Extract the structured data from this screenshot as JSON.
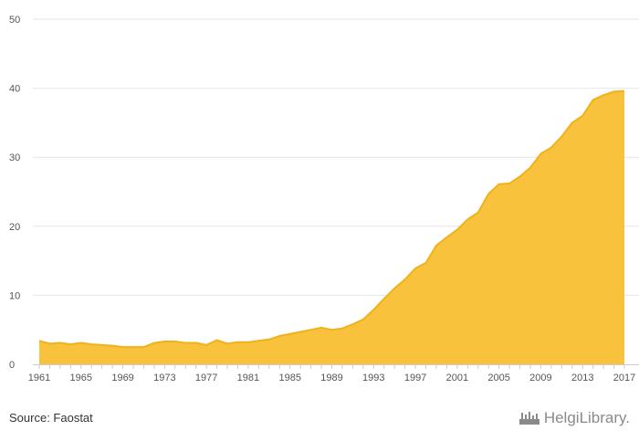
{
  "chart_data": {
    "type": "area",
    "x": [
      1961,
      1962,
      1963,
      1964,
      1965,
      1966,
      1967,
      1968,
      1969,
      1970,
      1971,
      1972,
      1973,
      1974,
      1975,
      1976,
      1977,
      1978,
      1979,
      1980,
      1981,
      1982,
      1983,
      1984,
      1985,
      1986,
      1987,
      1988,
      1989,
      1990,
      1991,
      1992,
      1993,
      1994,
      1995,
      1996,
      1997,
      1998,
      1999,
      2000,
      2001,
      2002,
      2003,
      2004,
      2005,
      2006,
      2007,
      2008,
      2009,
      2010,
      2011,
      2012,
      2013,
      2014,
      2015,
      2016,
      2017
    ],
    "series": [
      {
        "values": [
          3.4,
          3.0,
          3.1,
          2.9,
          3.1,
          2.9,
          2.8,
          2.7,
          2.5,
          2.5,
          2.5,
          3.1,
          3.3,
          3.3,
          3.1,
          3.1,
          2.8,
          3.5,
          3.0,
          3.2,
          3.2,
          3.4,
          3.6,
          4.1,
          4.4,
          4.7,
          5.0,
          5.3,
          5.0,
          5.2,
          5.8,
          6.5,
          7.9,
          9.5,
          11.0,
          12.3,
          13.9,
          14.7,
          17.2,
          18.4,
          19.5,
          21.0,
          22.0,
          24.7,
          26.1,
          26.2,
          27.2,
          28.5,
          30.5,
          31.4,
          33.0,
          35.0,
          36.0,
          38.3,
          39.0,
          39.5,
          39.6
        ]
      }
    ],
    "xticks": [
      1961,
      1965,
      1969,
      1973,
      1977,
      1981,
      1985,
      1989,
      1993,
      1997,
      2001,
      2005,
      2009,
      2013,
      2017
    ],
    "yticks": [
      0,
      10,
      20,
      30,
      40,
      50
    ],
    "xlim": [
      1961,
      2017
    ],
    "ylim": [
      0,
      50
    ],
    "grid": true,
    "legend": "none",
    "colors": {
      "fill": "#f8c23d",
      "line": "#f0b21a",
      "grid": "#e6e6e6",
      "axis": "#cccccc"
    }
  },
  "footer": {
    "source": "Source: Faostat",
    "brand": "HelgiLibrary."
  }
}
